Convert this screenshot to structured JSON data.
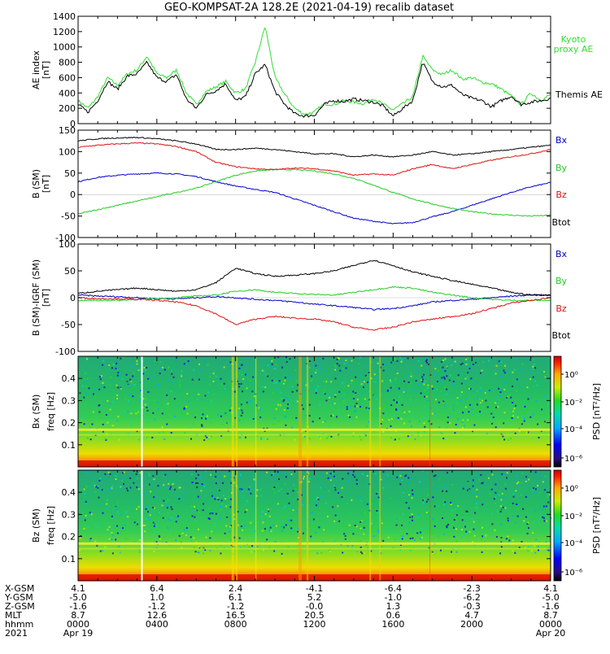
{
  "title": "GEO-KOMPSAT-2A 128.2E (2021-04-19) recalib dataset",
  "colors": {
    "black": "#000000",
    "blue": "#0000cc",
    "green": "#22cc22",
    "red": "#dd1111",
    "kyoto": "#33dd33"
  },
  "chart_data": [
    {
      "type": "line",
      "ylabel": "AE index",
      "yunit": "[nT]",
      "ylim": [
        0,
        1400
      ],
      "yticks": [
        "0",
        "200",
        "400",
        "600",
        "800",
        "1000",
        "1200",
        "1400"
      ],
      "x": [
        0,
        0.5,
        1,
        1.5,
        2,
        2.5,
        3,
        3.5,
        4,
        4.5,
        5,
        5.5,
        6,
        6.5,
        7,
        7.5,
        8,
        8.5,
        9,
        9.5,
        10,
        10.5,
        11,
        11.5,
        12,
        12.5,
        13,
        13.5,
        14,
        14.5,
        15,
        15.5,
        16,
        16.5,
        17,
        17.5,
        18,
        18.5,
        19,
        19.5,
        20,
        20.5,
        21,
        21.5,
        22,
        22.5,
        23,
        23.5,
        24
      ],
      "series": [
        {
          "name": "Kyoto proxy AE",
          "color": "#33dd33",
          "values": [
            300,
            200,
            350,
            600,
            500,
            650,
            700,
            880,
            650,
            600,
            700,
            400,
            250,
            420,
            480,
            550,
            400,
            450,
            800,
            1270,
            600,
            380,
            200,
            120,
            150,
            260,
            250,
            300,
            280,
            260,
            330,
            250,
            180,
            260,
            350,
            880,
            700,
            640,
            700,
            580,
            600,
            540,
            520,
            450,
            360,
            250,
            400,
            300,
            380
          ]
        },
        {
          "name": "Themis AE",
          "color": "#000000",
          "values": [
            250,
            150,
            300,
            550,
            450,
            620,
            650,
            800,
            600,
            550,
            640,
            320,
            200,
            380,
            430,
            520,
            300,
            350,
            650,
            770,
            420,
            250,
            130,
            100,
            110,
            250,
            300,
            290,
            320,
            300,
            280,
            230,
            100,
            200,
            300,
            800,
            550,
            480,
            500,
            380,
            330,
            300,
            220,
            300,
            360,
            250,
            280,
            300,
            330
          ]
        }
      ]
    },
    {
      "type": "line",
      "ylabel": "B (SM)",
      "yunit": "[nT]",
      "ylim": [
        -100,
        150
      ],
      "yticks": [
        "-100",
        "-50",
        "0",
        "50",
        "100",
        "150"
      ],
      "x": [
        0,
        1,
        2,
        3,
        4,
        5,
        6,
        7,
        8,
        9,
        10,
        11,
        12,
        13,
        14,
        15,
        16,
        17,
        18,
        19,
        20,
        21,
        22,
        23,
        24
      ],
      "series": [
        {
          "name": "Bx",
          "color": "#0000cc",
          "values": [
            30,
            40,
            45,
            48,
            50,
            48,
            42,
            30,
            20,
            12,
            5,
            -10,
            -25,
            -40,
            -55,
            -62,
            -68,
            -65,
            -52,
            -40,
            -25,
            -10,
            5,
            18,
            28
          ]
        },
        {
          "name": "By",
          "color": "#22cc22",
          "values": [
            -45,
            -35,
            -25,
            -15,
            -5,
            5,
            15,
            30,
            45,
            55,
            58,
            58,
            55,
            48,
            38,
            22,
            5,
            -10,
            -22,
            -32,
            -40,
            -45,
            -48,
            -50,
            -48
          ]
        },
        {
          "name": "Bz",
          "color": "#dd1111",
          "values": [
            110,
            115,
            118,
            120,
            118,
            112,
            100,
            75,
            65,
            60,
            58,
            62,
            60,
            55,
            45,
            48,
            45,
            60,
            70,
            60,
            70,
            80,
            88,
            95,
            105
          ]
        },
        {
          "name": "Btot",
          "color": "#000000",
          "values": [
            125,
            130,
            132,
            133,
            130,
            125,
            118,
            105,
            105,
            108,
            105,
            100,
            95,
            95,
            88,
            92,
            88,
            92,
            100,
            92,
            95,
            100,
            105,
            110,
            115
          ]
        }
      ]
    },
    {
      "type": "line",
      "ylabel": "B (SM)-IGRF (SM)",
      "yunit": "[nT]",
      "ylim": [
        -100,
        100
      ],
      "yticks": [
        "-100",
        "-50",
        "0",
        "50",
        "100"
      ],
      "x": [
        0,
        1,
        2,
        3,
        4,
        5,
        6,
        7,
        8,
        9,
        10,
        11,
        12,
        13,
        14,
        15,
        16,
        17,
        18,
        19,
        20,
        21,
        22,
        23,
        24
      ],
      "series": [
        {
          "name": "Bx",
          "color": "#0000cc",
          "values": [
            5,
            3,
            2,
            0,
            -2,
            -2,
            0,
            2,
            0,
            -3,
            -5,
            -8,
            -12,
            -15,
            -18,
            -22,
            -20,
            -15,
            -8,
            -5,
            -3,
            0,
            3,
            5,
            5
          ]
        },
        {
          "name": "By",
          "color": "#22cc22",
          "values": [
            -5,
            -5,
            -5,
            -3,
            -2,
            0,
            3,
            5,
            12,
            15,
            10,
            8,
            6,
            5,
            10,
            15,
            20,
            18,
            10,
            5,
            0,
            -3,
            -5,
            -5,
            -5
          ]
        },
        {
          "name": "Bz",
          "color": "#dd1111",
          "values": [
            0,
            -2,
            -2,
            -3,
            -5,
            -8,
            -15,
            -30,
            -50,
            -40,
            -35,
            -38,
            -40,
            -45,
            -55,
            -60,
            -55,
            -45,
            -40,
            -35,
            -30,
            -20,
            -10,
            -5,
            0
          ]
        },
        {
          "name": "Btot",
          "color": "#000000",
          "values": [
            8,
            12,
            15,
            18,
            15,
            12,
            15,
            28,
            55,
            45,
            40,
            42,
            45,
            50,
            60,
            70,
            60,
            48,
            40,
            32,
            25,
            18,
            10,
            5,
            5
          ]
        }
      ]
    },
    {
      "type": "heatmap",
      "ylabel": "Bx (SM)",
      "ysub": "freq [Hz]",
      "yticks": [
        "0.1",
        "0.2",
        "0.3",
        "0.4"
      ],
      "colorbar_label": "PSD [nT²/Hz]",
      "colorbar_ticks": [
        "10⁰",
        "10⁻²",
        "10⁻⁴",
        "10⁻⁶"
      ]
    },
    {
      "type": "heatmap",
      "ylabel": "Bz (SM)",
      "ysub": "freq [Hz]",
      "yticks": [
        "0.1",
        "0.2",
        "0.3",
        "0.4"
      ],
      "colorbar_label": "PSD [nT²/Hz]",
      "colorbar_ticks": [
        "10⁰",
        "10⁻²",
        "10⁻⁴",
        "10⁻⁶"
      ]
    }
  ],
  "xaxis": {
    "row_labels": [
      "X-GSM",
      "Y-GSM",
      "Z-GSM",
      "MLT",
      "hhmm",
      "2021"
    ],
    "columns": [
      [
        "4.1",
        "-5.0",
        "-1.6",
        "8.7",
        "0000",
        "Apr 19"
      ],
      [
        "6.4",
        "1.0",
        "-1.2",
        "12.6",
        "0400",
        ""
      ],
      [
        "2.4",
        "6.1",
        "-1.2",
        "16.5",
        "0800",
        ""
      ],
      [
        "-4.1",
        "5.2",
        "-0.0",
        "20.5",
        "1200",
        ""
      ],
      [
        "-6.4",
        "-1.0",
        "1.3",
        "0.6",
        "1600",
        ""
      ],
      [
        "-2.3",
        "-6.2",
        "-0.3",
        "4.7",
        "2000",
        ""
      ],
      [
        "4.1",
        "-5.0",
        "-1.6",
        "8.7",
        "0000",
        "Apr 20"
      ]
    ]
  }
}
